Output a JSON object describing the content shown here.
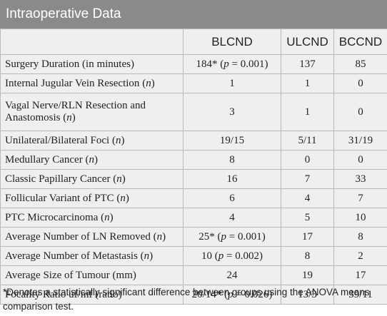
{
  "title": "Intraoperative Data",
  "columns": [
    "",
    "BLCND",
    "ULCND",
    "BCCND"
  ],
  "rows": [
    {
      "label": "Surgery Duration (in minutes)",
      "blcnd": "184* (p = 0.001)",
      "ulcnd": "137",
      "bccnd": "85"
    },
    {
      "label": "Internal Jugular Vein Resection (n)",
      "blcnd": "1",
      "ulcnd": "1",
      "bccnd": "0"
    },
    {
      "label": "Vagal Nerve/RLN Resection and Anastomosis (n)",
      "blcnd": "3",
      "ulcnd": "1",
      "bccnd": "0"
    },
    {
      "label": "Unilateral/Bilateral Foci (n)",
      "blcnd": "19/15",
      "ulcnd": "5/11",
      "bccnd": "31/19"
    },
    {
      "label": "Medullary Cancer (n)",
      "blcnd": "8",
      "ulcnd": "0",
      "bccnd": "0"
    },
    {
      "label": "Classic Papillary Cancer (n)",
      "blcnd": "16",
      "ulcnd": "7",
      "bccnd": "33"
    },
    {
      "label": "Follicular Variant of PTC (n)",
      "blcnd": "6",
      "ulcnd": "4",
      "bccnd": "7"
    },
    {
      "label": "PTC Microcarcinoma (n)",
      "blcnd": "4",
      "ulcnd": "5",
      "bccnd": "10"
    },
    {
      "label": "Average Number of LN Removed (n)",
      "blcnd": "25* (p = 0.001)",
      "ulcnd": "17",
      "bccnd": "8"
    },
    {
      "label": "Average Number of Metastasis (n)",
      "blcnd": "10 (p = 0.002)",
      "ulcnd": "8",
      "bccnd": "2"
    },
    {
      "label": "Average Size of Tumour (mm)",
      "blcnd": "24",
      "ulcnd": "19",
      "bccnd": "17"
    },
    {
      "label": "Focality Ratio uf/mf (ratio)",
      "blcnd": "20/14* (p = 0.026)",
      "ulcnd": "13/3",
      "bccnd": "39/11"
    }
  ],
  "footnote": "*Denotes a statistically significant difference between groups using the ANOVA means comparison test."
}
